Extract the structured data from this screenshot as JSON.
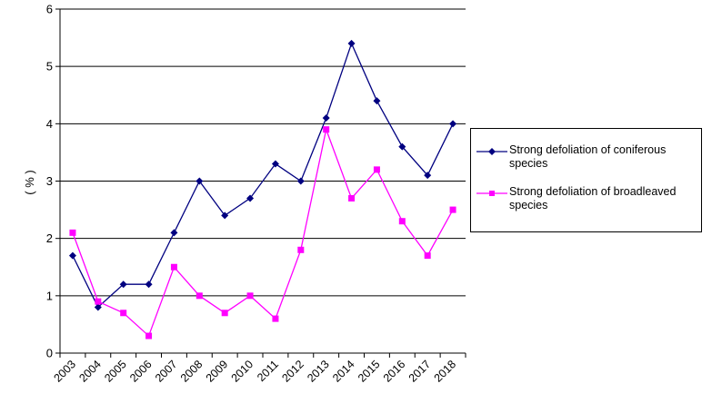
{
  "chart_data": {
    "type": "line",
    "title": "",
    "xlabel": "",
    "ylabel": "( % )",
    "ylim": [
      0,
      6
    ],
    "yticks": [
      "0",
      "1",
      "2",
      "3",
      "4",
      "5",
      "6"
    ],
    "grid": "horizontal",
    "legend_position": "right",
    "categories": [
      "2003",
      "2004",
      "2005",
      "2006",
      "2007",
      "2008",
      "2009",
      "2010",
      "2011",
      "2012",
      "2013",
      "2014",
      "2015",
      "2016",
      "2017",
      "2018"
    ],
    "series": [
      {
        "name": "Strong defoliation of coniferous species",
        "color": "#000080",
        "marker": "diamond",
        "values": [
          1.7,
          0.8,
          1.2,
          1.2,
          2.1,
          3.0,
          2.4,
          2.7,
          3.3,
          3.0,
          4.1,
          5.4,
          4.4,
          3.6,
          3.1,
          4.0
        ]
      },
      {
        "name": "Strong defoliation of broadleaved species",
        "color": "#ff00ff",
        "marker": "square",
        "values": [
          2.1,
          0.9,
          0.7,
          0.3,
          1.5,
          1.0,
          0.7,
          1.0,
          0.6,
          1.8,
          3.9,
          2.7,
          3.2,
          2.3,
          1.7,
          2.5
        ]
      }
    ]
  }
}
